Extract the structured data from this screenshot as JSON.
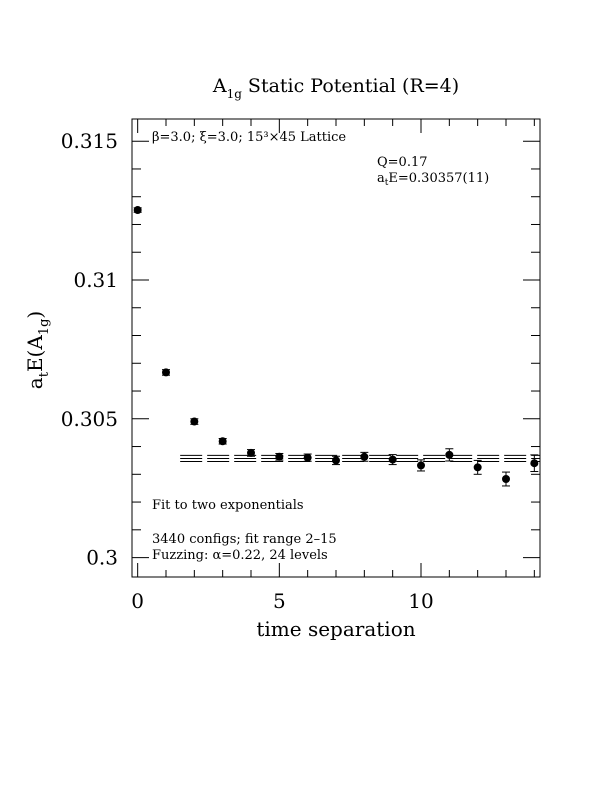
{
  "chart_data": {
    "type": "scatter",
    "title_parts": [
      "A",
      "1g",
      " Static Potential (R=4)"
    ],
    "xlabel": "time separation",
    "ylabel_parts": [
      "a",
      "t",
      "E(A",
      "1g",
      ")"
    ],
    "xlim": [
      -0.2,
      14.2
    ],
    "ylim": [
      0.2993,
      0.3158
    ],
    "xticks": [
      0,
      5,
      10
    ],
    "xtick_labels": [
      "0",
      "5",
      "10"
    ],
    "yticks": [
      0.3,
      0.305,
      0.31,
      0.315
    ],
    "ytick_labels": [
      "0.3",
      "0.305",
      "0.31",
      "0.315"
    ],
    "series": [
      {
        "points": [
          {
            "x": 0,
            "y": 0.31252,
            "err": 8e-05
          },
          {
            "x": 1,
            "y": 0.30667,
            "err": 0.0001
          },
          {
            "x": 2,
            "y": 0.3049,
            "err": 0.0001
          },
          {
            "x": 3,
            "y": 0.30419,
            "err": 0.0001
          },
          {
            "x": 4,
            "y": 0.30377,
            "err": 0.00012
          },
          {
            "x": 5,
            "y": 0.30363,
            "err": 0.00012
          },
          {
            "x": 6,
            "y": 0.3036,
            "err": 0.00013
          },
          {
            "x": 7,
            "y": 0.3035,
            "err": 0.00015
          },
          {
            "x": 8,
            "y": 0.30363,
            "err": 0.00016
          },
          {
            "x": 9,
            "y": 0.30353,
            "err": 0.00018
          },
          {
            "x": 10,
            "y": 0.30332,
            "err": 0.0002
          },
          {
            "x": 11,
            "y": 0.3037,
            "err": 0.00022
          },
          {
            "x": 12,
            "y": 0.30325,
            "err": 0.00025
          },
          {
            "x": 13,
            "y": 0.30283,
            "err": 0.00025
          },
          {
            "x": 14,
            "y": 0.3034,
            "err": 0.0003
          }
        ]
      }
    ],
    "fit": {
      "x_range": [
        1.5,
        14.2
      ],
      "value": 0.30357,
      "error": 0.00011
    },
    "annotations": {
      "lattice": "β=3.0; ξ=3.0; 15³×45 Lattice",
      "q_value": "Q=0.17",
      "energy_prefix": "a",
      "energy_sub": "t",
      "energy_value": "E=0.30357(11)",
      "fit_desc": "Fit to two exponentials",
      "configs": "3440 configs; fit range 2–15",
      "fuzzing": "Fuzzing: α=0.22, 24 levels"
    },
    "grid": false,
    "legend": "none"
  }
}
